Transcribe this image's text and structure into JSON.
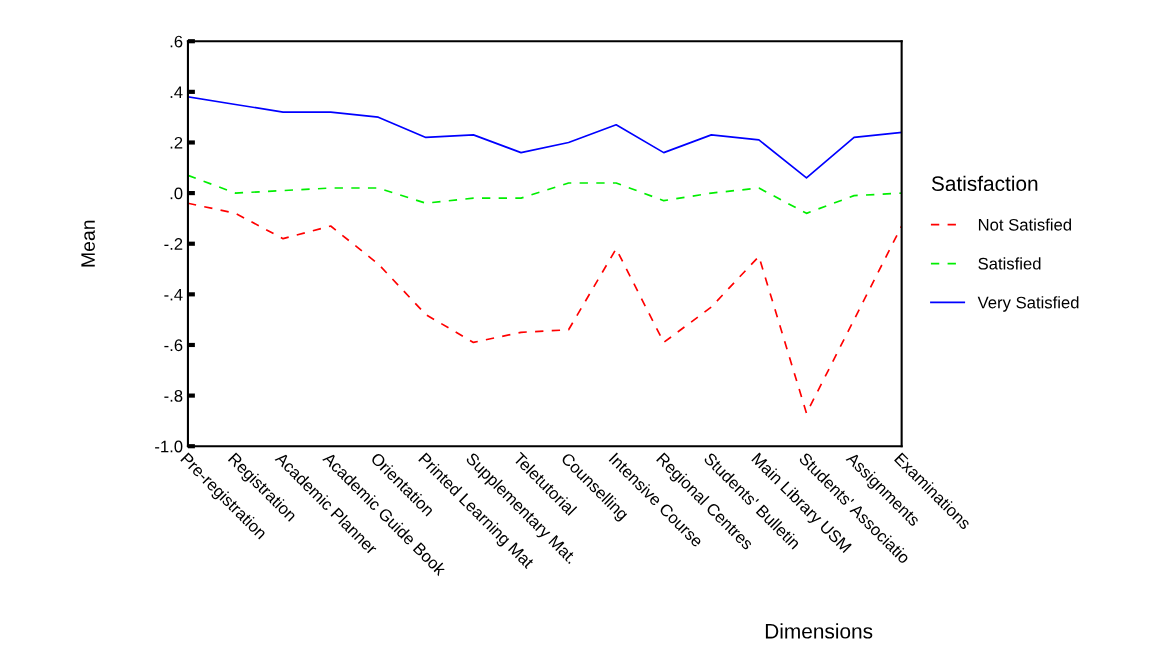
{
  "chart_data": {
    "type": "line",
    "xlabel": "Dimensions",
    "ylabel": "Mean",
    "legend_title": "Satisfaction",
    "legend": "right",
    "grid": false,
    "categories": [
      "Pre-registration",
      "Registration",
      "Academic Planner",
      "Academic Guide Book",
      "Orientation",
      "Printed Learning Mat",
      "Supplementary Mat.",
      "Teletutorial",
      "Counselling",
      "Intensive Course",
      "Regional Centres",
      "Students' Bulletin",
      "Main Library USM",
      "Students' Associatio",
      "Assignments",
      "Examinations"
    ],
    "ylim": [
      -1.0,
      0.6
    ],
    "yticks": [
      {
        "value": -1.0,
        "label": "-1.0"
      },
      {
        "value": -0.8,
        "label": "-.8"
      },
      {
        "value": -0.6,
        "label": "-.6"
      },
      {
        "value": -0.4,
        "label": "-.4"
      },
      {
        "value": -0.2,
        "label": "-.2"
      },
      {
        "value": 0.0,
        "label": ".0"
      },
      {
        "value": 0.2,
        "label": ".2"
      },
      {
        "value": 0.4,
        "label": ".4"
      },
      {
        "value": 0.6,
        "label": ".6"
      }
    ],
    "series": [
      {
        "name": "Not Satisfied",
        "color": "#ff0000",
        "line_style": "dashed",
        "values": [
          -0.04,
          -0.08,
          -0.18,
          -0.13,
          -0.28,
          -0.48,
          -0.59,
          -0.55,
          -0.54,
          -0.22,
          -0.59,
          -0.45,
          -0.25,
          -0.87,
          -0.5,
          -0.13
        ]
      },
      {
        "name": "Satisfied",
        "color": "#00ee00",
        "line_style": "dashed",
        "values": [
          0.07,
          0.0,
          0.01,
          0.02,
          0.02,
          -0.04,
          -0.02,
          -0.02,
          0.04,
          0.04,
          -0.03,
          0.0,
          0.02,
          -0.08,
          -0.01,
          0.0
        ]
      },
      {
        "name": "Very Satisfied",
        "color": "#0000ff",
        "line_style": "solid",
        "values": [
          0.38,
          0.35,
          0.32,
          0.32,
          0.3,
          0.22,
          0.23,
          0.16,
          0.2,
          0.27,
          0.16,
          0.23,
          0.21,
          0.06,
          0.22,
          0.24
        ]
      }
    ]
  }
}
